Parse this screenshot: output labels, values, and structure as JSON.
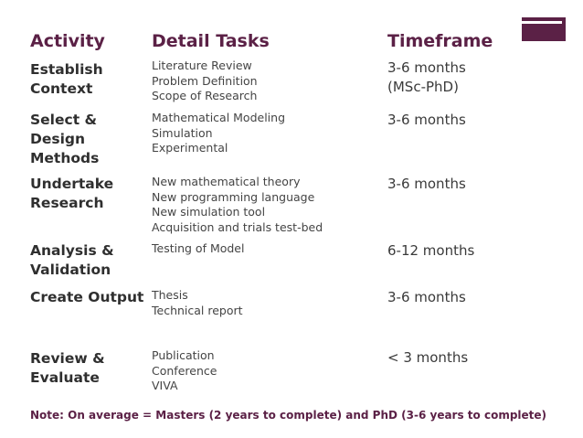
{
  "headers": {
    "activity": "Activity",
    "detail_tasks": "Detail Tasks",
    "timeframe": "Timeframe"
  },
  "rows": [
    {
      "activity_lines": [
        "Establish",
        "Context"
      ],
      "tasks": [
        "Literature Review",
        "Problem Definition",
        "Scope of Research"
      ],
      "timeframe_lines": [
        "3-6 months",
        "(MSc-PhD)"
      ]
    },
    {
      "activity_lines": [
        "Select &",
        "Design",
        "Methods"
      ],
      "tasks": [
        "Mathematical Modeling",
        "Simulation",
        "Experimental"
      ],
      "timeframe_lines": [
        "3-6 months"
      ]
    },
    {
      "activity_lines": [
        "Undertake",
        "Research"
      ],
      "tasks": [
        "New mathematical theory",
        "New programming language",
        "New simulation tool",
        "Acquisition and trials test-bed"
      ],
      "timeframe_lines": [
        "3-6 months"
      ]
    },
    {
      "activity_lines": [
        "Analysis &",
        "Validation"
      ],
      "tasks": [
        "Testing of Model"
      ],
      "timeframe_lines": [
        "6-12 months"
      ]
    },
    {
      "activity_lines": [
        "Create Output"
      ],
      "tasks": [
        "Thesis",
        "Technical report"
      ],
      "timeframe_lines": [
        "3-6 months"
      ]
    },
    {
      "activity_lines": [
        "Review &",
        "Evaluate"
      ],
      "tasks": [
        "Publication",
        "Conference",
        "VIVA"
      ],
      "timeframe_lines": [
        "< 3 months"
      ]
    }
  ],
  "note": "Note: On average = Masters (2 years to complete) and PhD (3-6 years to complete)",
  "colors": {
    "accent": "#5b2146",
    "activity_text": "#2f2f2f",
    "body_text": "#444444"
  },
  "icons": {
    "logo": "plum-bar-logo"
  }
}
